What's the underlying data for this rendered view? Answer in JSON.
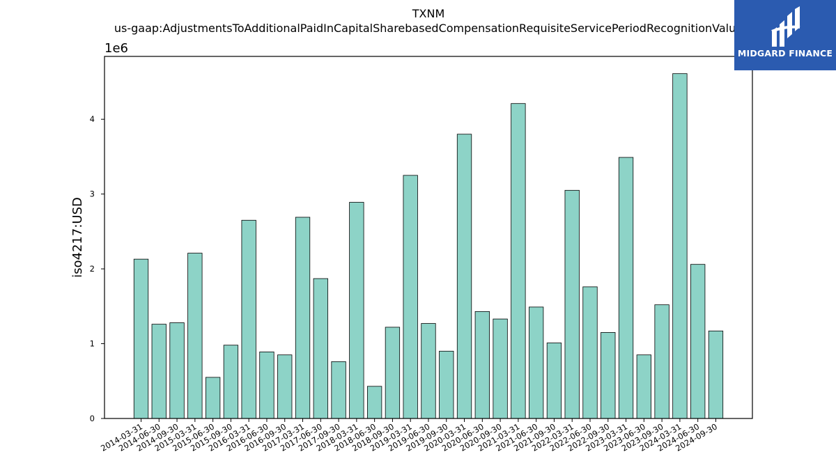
{
  "chart_data": {
    "type": "bar",
    "title": "TXNM",
    "subtitle": "us-gaap:AdjustmentsToAdditionalPaidInCapitalSharebasedCompensationRequisiteServicePeriodRecognitionValue",
    "xlabel": "",
    "ylabel": "iso4217:USD",
    "scale_label": "1e6",
    "ylim": [
      0,
      4.84
    ],
    "yticks": [
      0,
      1,
      2,
      3,
      4
    ],
    "grid": false,
    "bar_color": "#8dd3c7",
    "edge_color": "#000000",
    "categories": [
      "2014-03-31",
      "2014-06-30",
      "2014-09-30",
      "2015-03-31",
      "2015-06-30",
      "2015-09-30",
      "2016-03-31",
      "2016-06-30",
      "2016-09-30",
      "2017-03-31",
      "2017-06-30",
      "2017-09-30",
      "2018-03-31",
      "2018-06-30",
      "2018-09-30",
      "2019-03-31",
      "2019-06-30",
      "2019-09-30",
      "2020-03-31",
      "2020-06-30",
      "2020-09-30",
      "2021-03-31",
      "2021-06-30",
      "2021-09-30",
      "2022-03-31",
      "2022-06-30",
      "2022-09-30",
      "2023-03-31",
      "2023-06-30",
      "2023-09-30",
      "2024-03-31",
      "2024-06-30",
      "2024-09-30"
    ],
    "values": [
      2.13,
      1.26,
      1.28,
      2.21,
      0.55,
      0.98,
      2.65,
      0.89,
      0.85,
      2.69,
      1.87,
      0.76,
      2.89,
      0.43,
      1.22,
      3.25,
      1.27,
      0.9,
      3.8,
      1.43,
      1.33,
      4.21,
      1.49,
      1.01,
      3.05,
      1.76,
      1.15,
      3.49,
      0.85,
      1.52,
      4.61,
      2.06,
      1.17
    ]
  },
  "logo": {
    "text": "MIDGARD FINANCE",
    "background": "#2b5bb0"
  }
}
